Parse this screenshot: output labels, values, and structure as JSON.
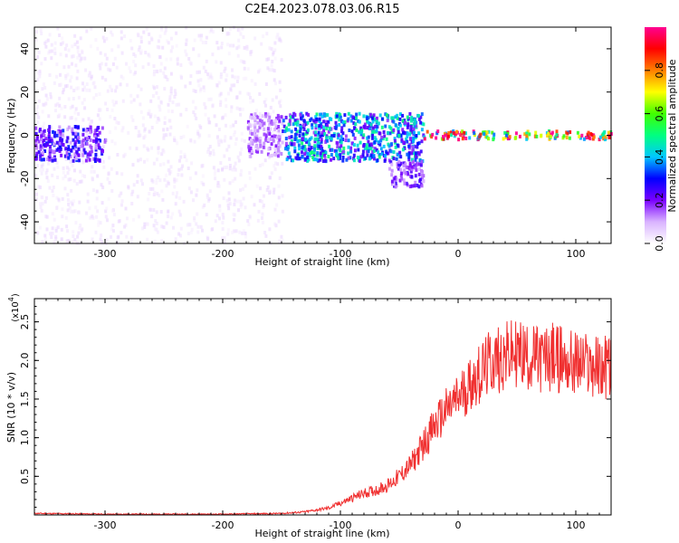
{
  "title": "C2E4.2023.078.03.06.R15",
  "chart_data": [
    {
      "type": "heatmap",
      "xlabel": "Height of straight line (km)",
      "ylabel": "Frequency (Hz)",
      "xlim": [
        -360,
        130
      ],
      "ylim": [
        -50,
        50
      ],
      "xticks": [
        -300,
        -200,
        -100,
        0,
        100
      ],
      "yticks": [
        -40,
        -20,
        0,
        20,
        40
      ],
      "colorbar": {
        "label": "Normalized spectral amplitude",
        "range": [
          0.0,
          1.0
        ],
        "ticks": [
          "0.0",
          "0.2",
          "0.4",
          "0.6",
          "0.8"
        ],
        "colormap": [
          "#ffffff",
          "#d9b3ff",
          "#7a00ff",
          "#0000ff",
          "#00c8ff",
          "#00ff80",
          "#40ff00",
          "#ffff00",
          "#ff8000",
          "#ff0000",
          "#ff0090"
        ]
      },
      "regions": [
        {
          "x_range": [
            -360,
            -150
          ],
          "freq_range": [
            -50,
            50
          ],
          "amplitude": 0.05
        },
        {
          "x_range": [
            -360,
            -300
          ],
          "freq_range": [
            -12,
            4
          ],
          "amplitude": 0.25
        },
        {
          "x_range": [
            -180,
            -150
          ],
          "freq_range": [
            -10,
            10
          ],
          "amplitude": 0.15
        },
        {
          "x_range": [
            -150,
            -30
          ],
          "freq_range": [
            -12,
            10
          ],
          "amplitude": 0.4
        },
        {
          "x_range": [
            -60,
            -30
          ],
          "freq_range": [
            -24,
            -12
          ],
          "amplitude": 0.2
        },
        {
          "x_range": [
            -30,
            130
          ],
          "freq_range": [
            -2,
            2
          ],
          "amplitude": 0.85
        }
      ]
    },
    {
      "type": "line",
      "xlabel": "Height of straight line (km)",
      "ylabel": "SNR (10 * v/v)",
      "y_multiplier": "(x10",
      "y_multiplier_exp": "4",
      "y_multiplier_close": ")",
      "xlim": [
        -360,
        130
      ],
      "ylim": [
        0,
        2.8
      ],
      "xticks": [
        -300,
        -200,
        -100,
        0,
        100
      ],
      "yticks": [
        0.5,
        1.0,
        1.5,
        2.0,
        2.5
      ],
      "color": "#f03030",
      "series": [
        {
          "x": [
            -360,
            -300,
            -250,
            -200,
            -150,
            -130,
            -110,
            -100,
            -90,
            -80,
            -70,
            -60,
            -50,
            -40,
            -30,
            -20,
            -10,
            0,
            10,
            20,
            30,
            40,
            50,
            60,
            70,
            80,
            90,
            100,
            110,
            120,
            130
          ],
          "y": [
            0.02,
            0.01,
            0.01,
            0.01,
            0.02,
            0.04,
            0.09,
            0.15,
            0.22,
            0.28,
            0.32,
            0.38,
            0.5,
            0.65,
            0.9,
            1.15,
            1.35,
            1.5,
            1.7,
            1.85,
            2.0,
            2.05,
            2.1,
            2.05,
            2.0,
            2.05,
            2.0,
            1.95,
            1.95,
            1.9,
            1.95
          ]
        }
      ]
    }
  ]
}
